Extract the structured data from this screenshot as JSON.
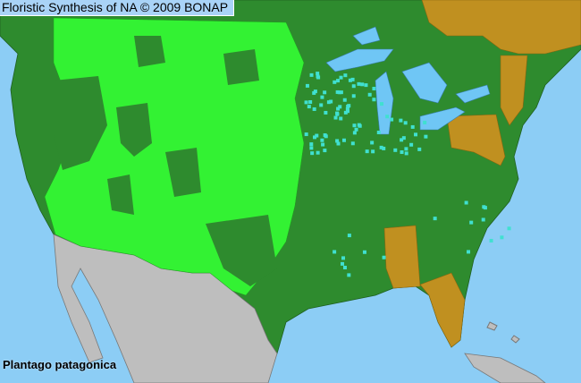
{
  "header": {
    "title": "Floristic Synthesis of NA © 2009 BONAP"
  },
  "map": {
    "species": "Plantago patagonica",
    "colors": {
      "ocean": "#8ccdf5",
      "species_present_native": "#2e8b2e",
      "species_present_county": "#33f233",
      "state_absent": "#c09020",
      "rare_noxious": "#40e0d0",
      "non_na": "#bebebe",
      "lakes": "#6fc6f5"
    }
  }
}
